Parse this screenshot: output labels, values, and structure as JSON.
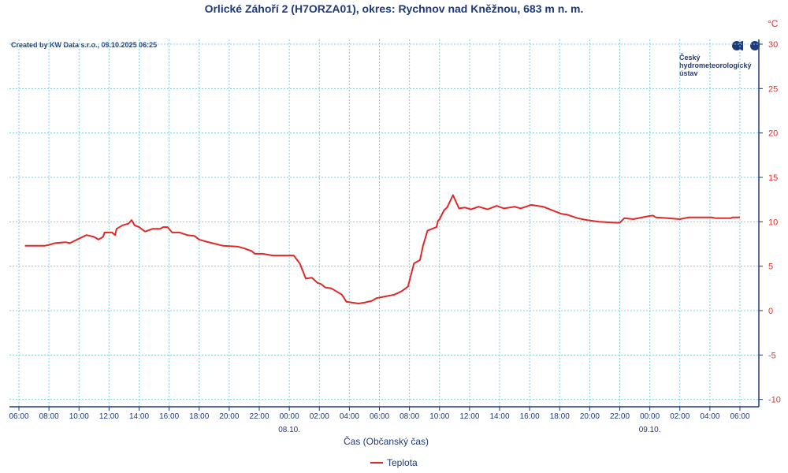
{
  "chart_data": {
    "type": "line",
    "title": "Orlické Záhoří 2 (H7ORZA01), okres: Rychnov nad Kněžnou, 683 m n. m.",
    "credit": "Created by KW Data s.r.o., 09.10.2025 06:25",
    "logo_text": [
      "Český",
      "hydrometeorologický",
      "ústav"
    ],
    "ylabel_unit": "°C",
    "xlabel": "Čas (Občanský čas)",
    "ylim": [
      -10,
      30
    ],
    "yticks": [
      -10,
      -5,
      0,
      5,
      10,
      15,
      20,
      25,
      30
    ],
    "x_unit": "hours since 07.10. 06:00",
    "xlim": [
      0,
      48
    ],
    "xtick_labels": [
      "06:00",
      "08:00",
      "10:00",
      "12:00",
      "14:00",
      "16:00",
      "18:00",
      "20:00",
      "22:00",
      "00:00",
      "02:00",
      "04:00",
      "06:00",
      "08:00",
      "10:00",
      "12:00",
      "14:00",
      "16:00",
      "18:00",
      "20:00",
      "22:00",
      "00:00",
      "02:00",
      "04:00",
      "06:00"
    ],
    "date_labels": [
      {
        "hour": 18,
        "label": "08.10."
      },
      {
        "hour": 42,
        "label": "09.10."
      }
    ],
    "grid": true,
    "legend_position": "bottom-center",
    "series": [
      {
        "name": "Teplota",
        "color": "#e02828",
        "points": [
          [
            0.4,
            7.3
          ],
          [
            1.7,
            7.3
          ],
          [
            2.0,
            7.4
          ],
          [
            2.4,
            7.6
          ],
          [
            3.1,
            7.7
          ],
          [
            3.4,
            7.6
          ],
          [
            4.0,
            8.1
          ],
          [
            4.5,
            8.5
          ],
          [
            5.0,
            8.3
          ],
          [
            5.3,
            8.0
          ],
          [
            5.6,
            8.3
          ],
          [
            5.7,
            8.8
          ],
          [
            6.2,
            8.8
          ],
          [
            6.4,
            8.5
          ],
          [
            6.5,
            9.2
          ],
          [
            6.9,
            9.6
          ],
          [
            7.3,
            9.8
          ],
          [
            7.5,
            10.2
          ],
          [
            7.7,
            9.6
          ],
          [
            8.0,
            9.4
          ],
          [
            8.4,
            8.9
          ],
          [
            8.9,
            9.2
          ],
          [
            9.4,
            9.2
          ],
          [
            9.6,
            9.4
          ],
          [
            9.9,
            9.4
          ],
          [
            10.2,
            8.8
          ],
          [
            10.7,
            8.8
          ],
          [
            11.2,
            8.5
          ],
          [
            11.7,
            8.4
          ],
          [
            12.0,
            8.0
          ],
          [
            12.4,
            7.8
          ],
          [
            13.1,
            7.5
          ],
          [
            13.6,
            7.3
          ],
          [
            14.6,
            7.2
          ],
          [
            15.0,
            7.0
          ],
          [
            15.5,
            6.7
          ],
          [
            15.7,
            6.4
          ],
          [
            16.2,
            6.4
          ],
          [
            16.9,
            6.2
          ],
          [
            18.3,
            6.2
          ],
          [
            18.7,
            5.3
          ],
          [
            19.1,
            3.6
          ],
          [
            19.5,
            3.7
          ],
          [
            19.9,
            3.1
          ],
          [
            20.1,
            3.0
          ],
          [
            20.4,
            2.6
          ],
          [
            20.8,
            2.5
          ],
          [
            21.5,
            1.8
          ],
          [
            21.8,
            1.0
          ],
          [
            22.6,
            0.8
          ],
          [
            23.0,
            0.9
          ],
          [
            23.5,
            1.1
          ],
          [
            23.8,
            1.4
          ],
          [
            24.4,
            1.6
          ],
          [
            25.0,
            1.8
          ],
          [
            25.5,
            2.2
          ],
          [
            25.9,
            2.7
          ],
          [
            26.3,
            5.3
          ],
          [
            26.7,
            5.7
          ],
          [
            26.9,
            7.3
          ],
          [
            27.2,
            9.0
          ],
          [
            27.5,
            9.2
          ],
          [
            27.8,
            9.4
          ],
          [
            27.9,
            10.1
          ],
          [
            28.0,
            10.3
          ],
          [
            28.3,
            11.3
          ],
          [
            28.5,
            11.6
          ],
          [
            28.9,
            13.0
          ],
          [
            29.3,
            11.5
          ],
          [
            29.7,
            11.6
          ],
          [
            30.1,
            11.4
          ],
          [
            30.6,
            11.7
          ],
          [
            31.2,
            11.4
          ],
          [
            31.8,
            11.8
          ],
          [
            32.3,
            11.5
          ],
          [
            33.0,
            11.7
          ],
          [
            33.4,
            11.5
          ],
          [
            34.1,
            11.9
          ],
          [
            34.9,
            11.7
          ],
          [
            35.5,
            11.3
          ],
          [
            36.1,
            10.9
          ],
          [
            36.5,
            10.8
          ],
          [
            37.2,
            10.4
          ],
          [
            37.8,
            10.2
          ],
          [
            38.6,
            10.0
          ],
          [
            39.7,
            9.9
          ],
          [
            40.0,
            9.9
          ],
          [
            40.3,
            10.4
          ],
          [
            40.9,
            10.3
          ],
          [
            41.8,
            10.6
          ],
          [
            42.2,
            10.7
          ],
          [
            42.4,
            10.5
          ],
          [
            43.2,
            10.4
          ],
          [
            44.0,
            10.3
          ],
          [
            44.6,
            10.5
          ],
          [
            46.1,
            10.5
          ],
          [
            46.4,
            10.4
          ],
          [
            47.4,
            10.4
          ],
          [
            47.5,
            10.5
          ],
          [
            48.0,
            10.5
          ]
        ]
      }
    ]
  }
}
